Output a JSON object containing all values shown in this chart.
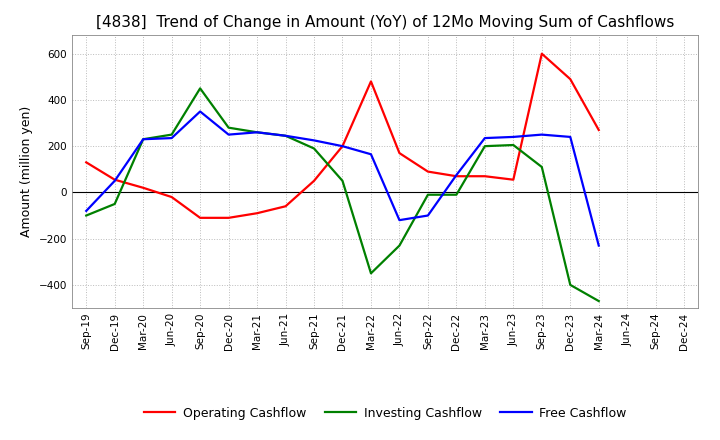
{
  "title": "[4838]  Trend of Change in Amount (YoY) of 12Mo Moving Sum of Cashflows",
  "ylabel": "Amount (million yen)",
  "x_labels": [
    "Sep-19",
    "Dec-19",
    "Mar-20",
    "Jun-20",
    "Sep-20",
    "Dec-20",
    "Mar-21",
    "Jun-21",
    "Sep-21",
    "Dec-21",
    "Mar-22",
    "Jun-22",
    "Sep-22",
    "Dec-22",
    "Mar-23",
    "Jun-23",
    "Sep-23",
    "Dec-23",
    "Mar-24",
    "Jun-24",
    "Sep-24",
    "Dec-24"
  ],
  "operating": [
    130,
    55,
    20,
    -20,
    -110,
    -110,
    -90,
    -60,
    50,
    200,
    480,
    170,
    90,
    70,
    70,
    55,
    600,
    490,
    270,
    null,
    null,
    null
  ],
  "investing": [
    -100,
    -50,
    230,
    250,
    450,
    280,
    260,
    245,
    190,
    50,
    -350,
    -230,
    -10,
    -10,
    200,
    205,
    110,
    -400,
    -470,
    null,
    null,
    null
  ],
  "free": [
    -80,
    50,
    230,
    235,
    350,
    250,
    260,
    245,
    225,
    200,
    165,
    -120,
    -100,
    75,
    235,
    240,
    250,
    240,
    -230,
    null,
    null,
    null
  ],
  "ylim": [
    -500,
    680
  ],
  "yticks": [
    -400,
    -200,
    0,
    200,
    400,
    600
  ],
  "legend_labels": [
    "Operating Cashflow",
    "Investing Cashflow",
    "Free Cashflow"
  ],
  "line_colors": [
    "red",
    "green",
    "blue"
  ],
  "background_color": "#ffffff",
  "grid_color": "#bbbbbb",
  "title_fontsize": 11,
  "label_fontsize": 9,
  "tick_fontsize": 7.5
}
